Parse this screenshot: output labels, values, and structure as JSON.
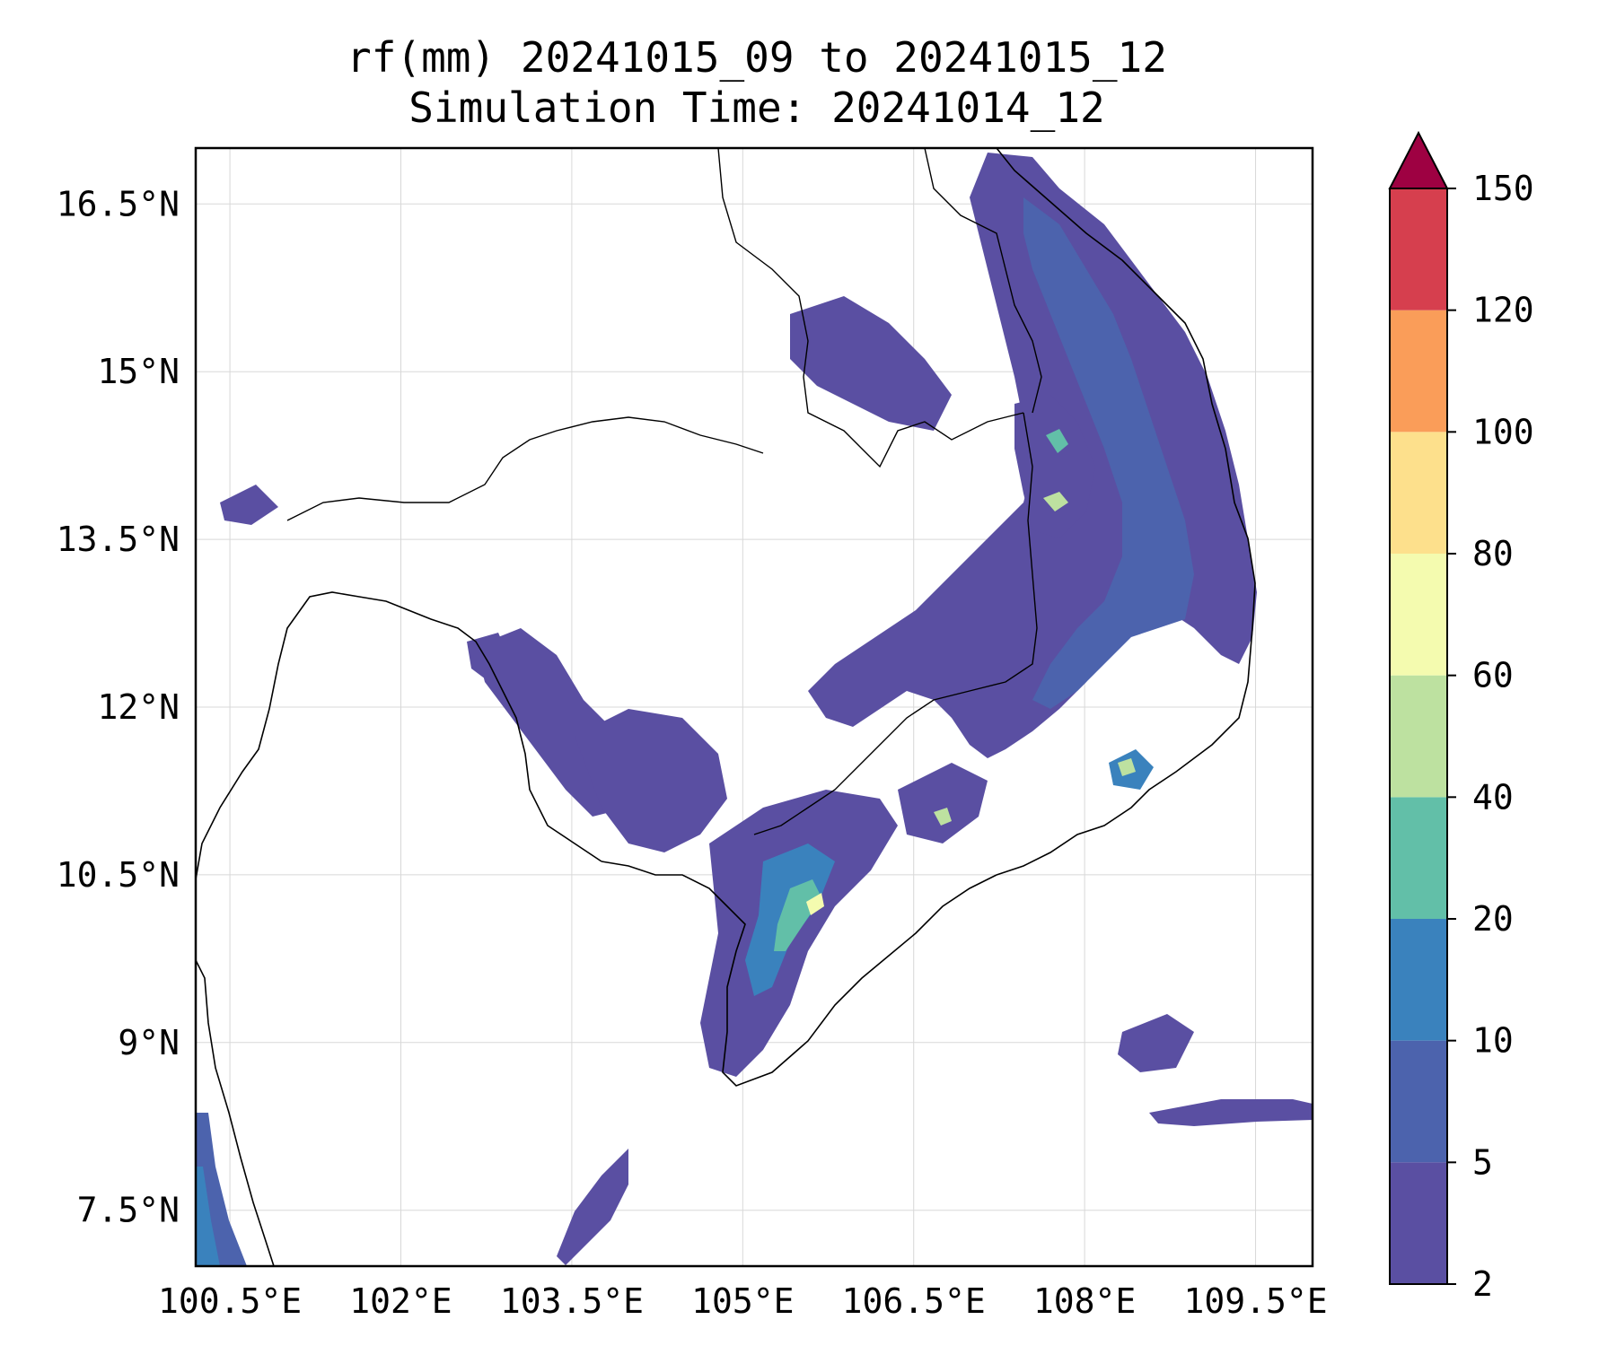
{
  "title": {
    "line1": "rf(mm) 20241015_09 to 20241015_12",
    "line2": "Simulation Time: 20241014_12"
  },
  "map": {
    "lon_range": [
      100.2,
      110.0
    ],
    "lat_range": [
      7.0,
      17.0
    ],
    "lon_ticks": [
      {
        "value": 100.5,
        "label": "100.5°E"
      },
      {
        "value": 102.0,
        "label": "102°E"
      },
      {
        "value": 103.5,
        "label": "103.5°E"
      },
      {
        "value": 105.0,
        "label": "105°E"
      },
      {
        "value": 106.5,
        "label": "106.5°E"
      },
      {
        "value": 108.0,
        "label": "108°E"
      },
      {
        "value": 109.5,
        "label": "109.5°E"
      }
    ],
    "lat_ticks": [
      {
        "value": 16.5,
        "label": "16.5°N"
      },
      {
        "value": 15.0,
        "label": "15°N"
      },
      {
        "value": 13.5,
        "label": "13.5°N"
      },
      {
        "value": 12.0,
        "label": "12°N"
      },
      {
        "value": 10.5,
        "label": "10.5°N"
      },
      {
        "value": 9.0,
        "label": "9°N"
      },
      {
        "value": 7.5,
        "label": "7.5°N"
      }
    ],
    "gridlines": true
  },
  "colorbar": {
    "levels": [
      2,
      5,
      10,
      20,
      40,
      60,
      80,
      100,
      120,
      150
    ],
    "labels": [
      "2",
      "5",
      "10",
      "20",
      "40",
      "60",
      "80",
      "100",
      "120",
      "150"
    ],
    "colors": [
      "#5a4fa2",
      "#4c63ad",
      "#3a82bd",
      "#62bfa8",
      "#bde1a0",
      "#f4fbaf",
      "#fde08c",
      "#fa9d59",
      "#d63f4e"
    ],
    "extend_color": "#9e0142"
  }
}
